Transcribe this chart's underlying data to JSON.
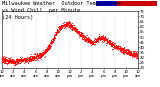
{
  "title": "Milwaukee Weather  Outdoor Temperature",
  "subtitle_line2": "vs Wind Chill  per Minute",
  "subtitle_line3": "(24 Hours)",
  "bg_color": "#ffffff",
  "plot_bg": "#ffffff",
  "dot_color": "#ff0000",
  "legend_blue": "#0000cc",
  "legend_red": "#cc0000",
  "ylim_min": 20,
  "ylim_max": 75,
  "xlim_min": 0,
  "xlim_max": 1440,
  "title_fontsize": 3.8,
  "tick_fontsize": 2.8,
  "grid_color": "#999999",
  "dot_size": 0.4,
  "temp_profile": [
    [
      0,
      29
    ],
    [
      30,
      28
    ],
    [
      60,
      27
    ],
    [
      90,
      27
    ],
    [
      120,
      26
    ],
    [
      150,
      26
    ],
    [
      180,
      27
    ],
    [
      210,
      28
    ],
    [
      240,
      28
    ],
    [
      270,
      28
    ],
    [
      300,
      29
    ],
    [
      330,
      30
    ],
    [
      360,
      31
    ],
    [
      390,
      32
    ],
    [
      420,
      33
    ],
    [
      450,
      35
    ],
    [
      480,
      38
    ],
    [
      510,
      42
    ],
    [
      540,
      47
    ],
    [
      570,
      52
    ],
    [
      600,
      57
    ],
    [
      630,
      60
    ],
    [
      660,
      62
    ],
    [
      690,
      63
    ],
    [
      720,
      62
    ],
    [
      750,
      60
    ],
    [
      780,
      58
    ],
    [
      810,
      55
    ],
    [
      840,
      52
    ],
    [
      870,
      50
    ],
    [
      900,
      48
    ],
    [
      930,
      46
    ],
    [
      960,
      44
    ],
    [
      990,
      46
    ],
    [
      1020,
      48
    ],
    [
      1050,
      50
    ],
    [
      1080,
      49
    ],
    [
      1110,
      47
    ],
    [
      1140,
      45
    ],
    [
      1170,
      43
    ],
    [
      1200,
      41
    ],
    [
      1230,
      40
    ],
    [
      1260,
      38
    ],
    [
      1290,
      37
    ],
    [
      1320,
      36
    ],
    [
      1350,
      35
    ],
    [
      1380,
      34
    ],
    [
      1410,
      33
    ],
    [
      1440,
      32
    ]
  ]
}
